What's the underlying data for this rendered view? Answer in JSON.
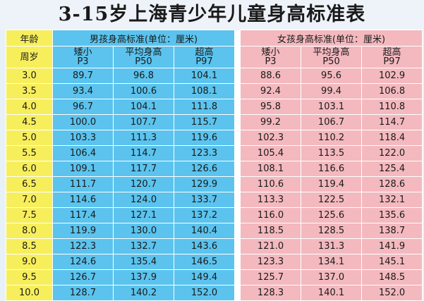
{
  "title": "3-15岁上海青少年儿童身高标准表",
  "header": {
    "age_label": "年龄",
    "age_unit": "周岁",
    "boys_group": "男孩身高标准(单位：厘米)",
    "girls_group": "女孩身高标准(单位：厘米)",
    "columns": [
      {
        "name": "矮小",
        "code": "P3"
      },
      {
        "name": "平均身高",
        "code": "P50"
      },
      {
        "name": "超高",
        "code": "P97"
      }
    ]
  },
  "rows": [
    {
      "age": "3.0",
      "boy": [
        "89.7",
        "96.8",
        "104.1"
      ],
      "girl": [
        "88.6",
        "95.6",
        "102.9"
      ]
    },
    {
      "age": "3.5",
      "boy": [
        "93.4",
        "100.6",
        "108.1"
      ],
      "girl": [
        "92.4",
        "99.4",
        "106.8"
      ]
    },
    {
      "age": "4.0",
      "boy": [
        "96.7",
        "104.1",
        "111.8"
      ],
      "girl": [
        "95.8",
        "103.1",
        "110.8"
      ]
    },
    {
      "age": "4.5",
      "boy": [
        "100.0",
        "107.7",
        "115.7"
      ],
      "girl": [
        "99.2",
        "106.7",
        "114.7"
      ]
    },
    {
      "age": "5.0",
      "boy": [
        "103.3",
        "111.3",
        "119.6"
      ],
      "girl": [
        "102.3",
        "110.2",
        "118.4"
      ]
    },
    {
      "age": "5.5",
      "boy": [
        "106.4",
        "114.7",
        "123.3"
      ],
      "girl": [
        "105.4",
        "113.5",
        "122.0"
      ]
    },
    {
      "age": "6.0",
      "boy": [
        "109.1",
        "117.7",
        "126.6"
      ],
      "girl": [
        "108.1",
        "116.6",
        "125.4"
      ]
    },
    {
      "age": "6.5",
      "boy": [
        "111.7",
        "120.7",
        "129.9"
      ],
      "girl": [
        "110.6",
        "119.4",
        "128.6"
      ]
    },
    {
      "age": "7.0",
      "boy": [
        "114.6",
        "124.0",
        "133.7"
      ],
      "girl": [
        "113.3",
        "122.5",
        "132.1"
      ]
    },
    {
      "age": "7.5",
      "boy": [
        "117.4",
        "127.1",
        "137.2"
      ],
      "girl": [
        "116.0",
        "125.6",
        "135.6"
      ]
    },
    {
      "age": "8.0",
      "boy": [
        "119.9",
        "130.0",
        "140.4"
      ],
      "girl": [
        "118.5",
        "128.5",
        "138.7"
      ]
    },
    {
      "age": "8.5",
      "boy": [
        "122.3",
        "132.7",
        "143.6"
      ],
      "girl": [
        "121.0",
        "131.3",
        "141.9"
      ]
    },
    {
      "age": "9.0",
      "boy": [
        "124.6",
        "135.4",
        "146.5"
      ],
      "girl": [
        "123.3",
        "134.1",
        "145.1"
      ]
    },
    {
      "age": "9.5",
      "boy": [
        "126.7",
        "137.9",
        "149.4"
      ],
      "girl": [
        "125.7",
        "137.0",
        "148.5"
      ]
    },
    {
      "age": "10.0",
      "boy": [
        "128.7",
        "140.2",
        "152.0"
      ],
      "girl": [
        "128.3",
        "140.1",
        "152.0"
      ]
    }
  ],
  "colors": {
    "age_column": "#f7ee5c",
    "boys": "#5bc3ee",
    "girls": "#f3b9bf"
  }
}
